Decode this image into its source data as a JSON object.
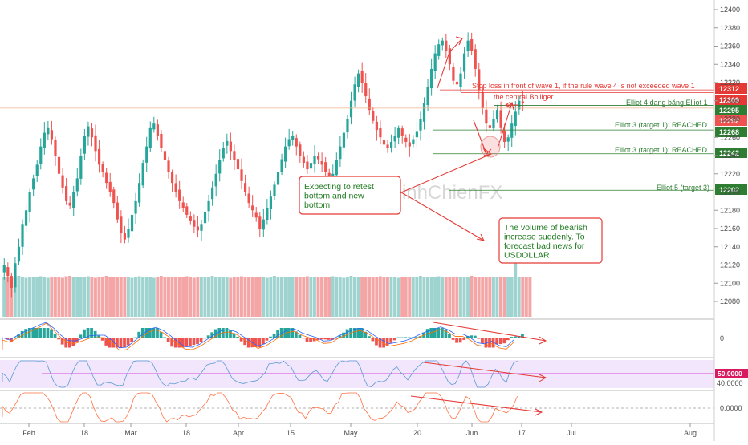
{
  "chart_data": {
    "type": "candlestick",
    "watermark": "DinhChienFX",
    "price_axis": {
      "ylim": [
        12060,
        12410
      ],
      "ticks": [
        12400,
        12380,
        12360,
        12340,
        12320,
        12300,
        12280,
        12260,
        12240,
        12220,
        12200,
        12180,
        12160,
        12140,
        12120,
        12100,
        12080
      ],
      "tick_labels": [
        "12400",
        "12380",
        "12360",
        "12340",
        "12320",
        "12300",
        "12280",
        "12260",
        "12240",
        "12220",
        "12200",
        "12180",
        "12160",
        "12140",
        "12120",
        "12100",
        "12080"
      ]
    },
    "date_axis": {
      "labels": [
        "Feb",
        "18",
        "Mar",
        "18",
        "Apr",
        "15",
        "May",
        "20",
        "Jun",
        "17",
        "Jul",
        "Aug"
      ]
    },
    "colors": {
      "up": "#26a69a",
      "down": "#ef5350",
      "vol_up": "#9fd3cf",
      "vol_down": "#f4a6a6",
      "annotation_red": "#e53935",
      "annotation_green": "#2e7d32"
    },
    "price_close_path": [
      12120,
      12108,
      12095,
      12122,
      12140,
      12165,
      12180,
      12200,
      12215,
      12230,
      12250,
      12265,
      12270,
      12258,
      12240,
      12220,
      12205,
      12190,
      12185,
      12200,
      12215,
      12240,
      12262,
      12272,
      12260,
      12245,
      12230,
      12222,
      12210,
      12200,
      12188,
      12170,
      12155,
      12148,
      12160,
      12175,
      12190,
      12210,
      12232,
      12250,
      12270,
      12275,
      12262,
      12248,
      12235,
      12222,
      12210,
      12200,
      12190,
      12182,
      12175,
      12168,
      12162,
      12158,
      12165,
      12178,
      12190,
      12205,
      12220,
      12235,
      12248,
      12256,
      12245,
      12235,
      12225,
      12212,
      12200,
      12188,
      12180,
      12172,
      12160,
      12170,
      12182,
      12195,
      12208,
      12222,
      12236,
      12250,
      12258,
      12262,
      12250,
      12240,
      12232,
      12225,
      12232,
      12240,
      12236,
      12230,
      12222,
      12212,
      12220,
      12235,
      12250,
      12265,
      12280,
      12300,
      12318,
      12330,
      12320,
      12305,
      12290,
      12278,
      12268,
      12260,
      12252,
      12248,
      12255,
      12262,
      12270,
      12262,
      12255,
      12250,
      12258,
      12266,
      12280,
      12298,
      12315,
      12335,
      12352,
      12362,
      12366,
      12355,
      12340,
      12322,
      12318,
      12330,
      12352,
      12366,
      12355,
      12335,
      12312,
      12292,
      12275,
      12270,
      12280,
      12290,
      12270,
      12255,
      12260,
      12275,
      12288,
      12300,
      12298
    ],
    "volume_path": [
      1.0,
      0.98,
      0.97,
      1.0,
      1.02,
      0.99,
      0.97,
      1.0,
      1.0,
      0.98,
      1.01,
      0.99,
      0.97,
      1.0,
      1.0,
      0.98,
      0.97,
      1.01,
      1.02,
      1.0,
      0.98,
      0.99,
      1.0,
      1.01,
      0.99,
      0.97,
      0.98,
      1.0,
      1.02,
      1.0,
      0.99,
      0.98,
      1.0,
      1.0,
      0.98,
      0.97,
      1.0,
      1.01,
      0.99,
      1.0,
      0.98,
      0.97,
      1.0,
      1.02,
      1.0,
      0.99,
      1.0,
      0.98,
      0.99,
      1.0,
      1.01,
      0.99,
      0.97,
      1.0,
      1.0,
      0.98,
      1.0,
      1.02,
      0.99,
      0.98,
      1.0,
      1.0,
      0.97,
      0.99,
      1.0,
      1.01,
      1.0,
      0.98,
      0.99,
      1.0,
      1.0,
      0.98,
      0.97,
      1.0,
      1.02,
      1.0,
      0.99,
      0.98,
      1.0,
      1.0,
      0.99,
      0.98,
      1.0,
      1.01,
      1.0,
      0.99,
      0.98,
      1.0,
      1.0,
      0.99,
      1.01,
      1.0,
      0.98,
      0.97,
      1.0,
      1.02,
      1.0,
      0.99,
      0.98,
      1.0,
      1.0,
      0.99,
      1.0,
      1.01,
      0.99,
      0.98,
      1.0,
      1.0,
      0.97,
      0.99,
      1.0,
      1.0,
      0.98,
      1.0,
      1.02,
      1.0,
      0.99,
      0.98,
      1.0,
      1.01,
      1.0,
      0.99,
      0.98,
      1.0,
      1.0,
      0.98,
      0.99,
      1.0,
      1.02,
      1.0,
      0.99,
      1.0,
      1.0,
      0.98,
      1.0,
      1.0,
      0.99,
      0.98,
      1.0,
      1.0,
      1.9,
      1.0,
      0.98,
      1.0,
      1.0
    ],
    "horizontal_levels": [
      {
        "price": 12312,
        "badge": "12312",
        "label": "Stop loss in front of wave 1, if the rule wave 4 is not exceeded wave 1",
        "color": "#e53935"
      },
      {
        "price": 12309,
        "badge": "12309",
        "label": "the central Bolliger",
        "color": "#e53935"
      },
      {
        "price": 12295,
        "badge": "12295",
        "label": "Elliot 4 dang bằng Elliot 1",
        "color": "#2e7d32"
      },
      {
        "price": 12292,
        "badge": "12292",
        "label": "",
        "color": "#ef5350"
      },
      {
        "price": 12268,
        "badge": "12268",
        "label": "Elliot 3 (target 1): REACHED",
        "color": "#2e7d32"
      },
      {
        "price": 12242,
        "badge": "12242",
        "label": "Elliot 3 (target 1): REACHED",
        "color": "#2e7d32"
      },
      {
        "price": 12202,
        "badge": "12202",
        "label": "Elliot 5 (target 3)",
        "color": "#2e7d32"
      }
    ],
    "callouts": [
      {
        "text": [
          "Expecting to retest",
          "bottom and new",
          "bottom"
        ]
      },
      {
        "text": [
          "The volume of bearish",
          "increase suddenly. To",
          "forecast bad news for",
          "USDOLLAR"
        ]
      }
    ],
    "macd_pane": {
      "tick_labels": [
        "0"
      ]
    },
    "rsi_pane": {
      "tick_labels": [
        "50.0000",
        "40.0000"
      ],
      "level": 50
    },
    "osc_pane": {
      "tick_labels": [
        "0.0000"
      ]
    }
  }
}
